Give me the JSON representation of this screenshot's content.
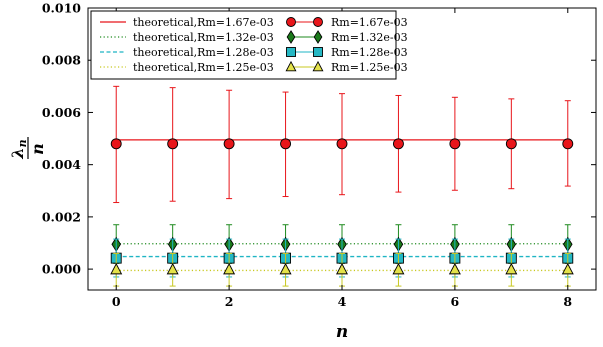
{
  "chart_data": {
    "type": "scatter",
    "xlabel": "n",
    "ylabel": "λn/n",
    "ylabel_parts": {
      "numerator": "λ",
      "subscript": "n",
      "denominator": "n"
    },
    "xlim": [
      -0.5,
      8.5
    ],
    "ylim": [
      -0.0008,
      0.01
    ],
    "x_ticks": [
      0,
      2,
      4,
      6,
      8
    ],
    "x_tick_labels": [
      "0",
      "2",
      "4",
      "6",
      "8"
    ],
    "y_ticks": [
      0.0,
      0.002,
      0.004,
      0.006,
      0.008,
      0.01
    ],
    "y_tick_labels": [
      "0.000",
      "0.002",
      "0.004",
      "0.006",
      "0.008",
      "0.010"
    ],
    "grid": false,
    "legend_position": "top-left",
    "x": [
      0,
      1,
      2,
      3,
      4,
      5,
      6,
      7,
      8
    ],
    "series": [
      {
        "name": "Rm=1.67e-03",
        "theoretical_name": "theoretical,Rm=1.67e-03",
        "color": "#e8151a",
        "marker_fill": "#e8151a",
        "marker": "circle",
        "line_style": "solid",
        "theoretical": 0.00495,
        "values": [
          0.0048,
          0.0048,
          0.0048,
          0.0048,
          0.0048,
          0.0048,
          0.0048,
          0.0048,
          0.0048
        ],
        "err_upper": [
          0.007,
          0.00695,
          0.00685,
          0.00678,
          0.00672,
          0.00665,
          0.00658,
          0.00652,
          0.00645
        ],
        "err_lower": [
          0.00255,
          0.0026,
          0.0027,
          0.00278,
          0.00285,
          0.00295,
          0.00302,
          0.00308,
          0.00318
        ]
      },
      {
        "name": "Rm=1.32e-03",
        "theoretical_name": "theoretical,Rm=1.32e-03",
        "color": "#1e8a1e",
        "marker_fill": "#1a7a1a",
        "marker": "diamond",
        "line_style": "dotted",
        "theoretical": 0.00097,
        "values": [
          0.00095,
          0.00095,
          0.00095,
          0.00095,
          0.00095,
          0.00095,
          0.00095,
          0.00095,
          0.00095
        ],
        "err_upper": [
          0.0017,
          0.0017,
          0.0017,
          0.0017,
          0.0017,
          0.0017,
          0.0017,
          0.0017,
          0.0017
        ],
        "err_lower": [
          0.00022,
          0.00022,
          0.00022,
          0.00022,
          0.00022,
          0.00022,
          0.00022,
          0.00022,
          0.00022
        ]
      },
      {
        "name": "Rm=1.28e-03",
        "theoretical_name": "theoretical,Rm=1.28e-03",
        "color": "#1fb5c4",
        "marker_fill": "#25b8c4",
        "marker": "square",
        "line_style": "dashed",
        "theoretical": 0.00048,
        "values": [
          0.00042,
          0.00042,
          0.00042,
          0.00042,
          0.00042,
          0.00042,
          0.00042,
          0.00042,
          0.00042
        ],
        "err_upper": [
          0.00115,
          0.00115,
          0.00115,
          0.00115,
          0.00115,
          0.00115,
          0.00115,
          0.00115,
          0.00115
        ],
        "err_lower": [
          -0.0003,
          -0.0003,
          -0.0003,
          -0.0003,
          -0.0003,
          -0.0003,
          -0.0003,
          -0.0003,
          -0.0003
        ]
      },
      {
        "name": "Rm=1.25e-03",
        "theoretical_name": "theoretical,Rm=1.25e-03",
        "color": "#c8c820",
        "marker_fill": "#e4e24a",
        "marker": "triangle",
        "line_style": "dotted",
        "theoretical": -5e-05,
        "values": [
          -2e-05,
          -2e-05,
          -2e-05,
          -2e-05,
          -2e-05,
          -2e-05,
          -2e-05,
          -2e-05,
          -2e-05
        ],
        "err_upper": [
          0.0006,
          0.0006,
          0.0006,
          0.0006,
          0.0006,
          0.0006,
          0.0006,
          0.0006,
          0.0006
        ],
        "err_lower": [
          -0.00065,
          -0.00065,
          -0.00065,
          -0.00065,
          -0.00065,
          -0.00065,
          -0.00065,
          -0.00065,
          -0.00065
        ]
      }
    ]
  }
}
